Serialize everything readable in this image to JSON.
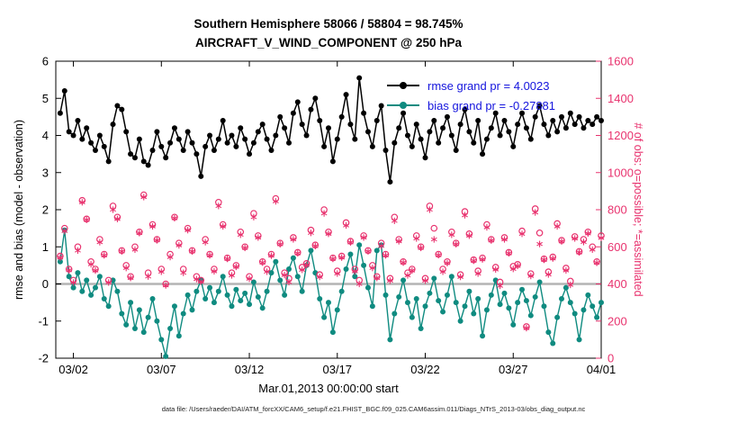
{
  "title": {
    "line1": "Southern Hemisphere 58066 / 58804 = 98.745%",
    "line2": "AIRCRAFT_V_WIND_COMPONENT @ 250 hPa"
  },
  "footer": {
    "data_file": "data file: /Users/raeder/DAI/ATM_forcXX/CAM6_setup/f.e21.FHIST_BGC.f09_025.CAM6assim.011/Diags_NTrS_2013-03/obs_diag_output.nc"
  },
  "chart_data": {
    "type": "line",
    "title": "Southern Hemisphere 58066 / 58804 = 98.745%",
    "subtitle": "AIRCRAFT_V_WIND_COMPONENT @ 250 hPa",
    "xlabel": "Mar.01,2013 00:00:00 start",
    "ylabel_left": "rmse and bias (model - observation)",
    "ylabel_right": "# of obs: o=possible; *=assimilated",
    "xlim_days": [
      0,
      31
    ],
    "ylim_left": [
      -2,
      6
    ],
    "ylim_right": [
      0,
      1600
    ],
    "xtick_days": [
      1,
      6,
      11,
      16,
      21,
      26,
      31
    ],
    "xtick_labels": [
      "03/02",
      "03/07",
      "03/12",
      "03/17",
      "03/22",
      "03/27",
      "04/01"
    ],
    "ytick_left": [
      -2,
      -1,
      0,
      1,
      2,
      3,
      4,
      5,
      6
    ],
    "ytick_right": [
      0,
      200,
      400,
      600,
      800,
      1000,
      1200,
      1400,
      1600
    ],
    "n_points": 124,
    "x_start_day": 0.25,
    "x_step_day": 0.25,
    "zero_line_color": "#b4b4b4",
    "colors": {
      "legend_text": "#1414dd",
      "obs": "#e8326e"
    },
    "series": [
      {
        "name": "rmse grand pr = 4.0023",
        "color": "#000000",
        "axis": "left",
        "marker": "dot",
        "line_width": 1.5,
        "values": [
          4.6,
          5.2,
          4.1,
          4.0,
          4.4,
          3.9,
          4.2,
          3.8,
          3.6,
          4.0,
          3.7,
          3.3,
          4.3,
          4.8,
          4.7,
          4.1,
          3.5,
          3.4,
          3.9,
          3.3,
          3.2,
          3.6,
          4.1,
          3.7,
          3.4,
          3.8,
          4.2,
          3.9,
          3.6,
          4.1,
          3.8,
          3.5,
          2.9,
          3.7,
          4.0,
          3.6,
          3.9,
          4.4,
          3.8,
          4.0,
          3.7,
          4.2,
          3.9,
          3.5,
          3.8,
          4.1,
          4.3,
          3.9,
          3.6,
          4.0,
          4.5,
          4.2,
          3.8,
          4.6,
          4.9,
          4.3,
          4.0,
          4.7,
          5.0,
          4.4,
          3.7,
          4.2,
          3.3,
          3.9,
          4.5,
          5.1,
          4.3,
          3.9,
          5.55,
          4.6,
          4.1,
          3.7,
          4.4,
          4.8,
          3.6,
          2.75,
          3.8,
          4.2,
          4.6,
          4.0,
          3.7,
          4.3,
          3.9,
          3.4,
          4.1,
          4.4,
          3.8,
          4.2,
          4.5,
          4.0,
          3.6,
          4.3,
          4.7,
          4.1,
          3.8,
          4.4,
          3.5,
          3.9,
          4.2,
          4.6,
          4.0,
          4.4,
          4.1,
          3.7,
          4.3,
          4.6,
          4.2,
          3.9,
          4.5,
          4.8,
          4.3,
          4.0,
          4.4,
          4.1,
          4.5,
          4.2,
          4.6,
          4.3,
          4.5,
          4.2,
          4.4,
          4.3,
          4.5,
          4.4
        ]
      },
      {
        "name": "bias grand pr = -0.27881",
        "color": "#0f8b80",
        "axis": "left",
        "marker": "dot",
        "line_width": 1.4,
        "values": [
          0.6,
          1.45,
          0.2,
          -0.1,
          0.3,
          -0.2,
          0.1,
          -0.3,
          -0.1,
          0.2,
          -0.4,
          -0.6,
          0.1,
          -0.2,
          -0.8,
          -1.1,
          -0.5,
          -1.2,
          -0.7,
          -1.3,
          -0.9,
          -0.4,
          -1.0,
          -1.5,
          -1.95,
          -1.2,
          -0.6,
          -1.4,
          -0.8,
          -0.3,
          -0.7,
          -0.2,
          0.1,
          -0.4,
          -0.1,
          -0.5,
          -0.2,
          0.2,
          -0.3,
          -0.6,
          -0.15,
          -0.45,
          -0.25,
          -0.55,
          0.05,
          -0.35,
          -0.65,
          -0.2,
          0.3,
          0.6,
          0.1,
          -0.3,
          0.4,
          0.7,
          0.2,
          -0.2,
          0.5,
          0.9,
          0.3,
          -0.4,
          -0.9,
          -0.5,
          -1.3,
          -0.7,
          -0.2,
          0.4,
          0.8,
          0.2,
          1.05,
          0.5,
          -0.1,
          -0.6,
          0.9,
          1.05,
          -0.3,
          -1.5,
          -0.8,
          -0.35,
          0.1,
          -0.5,
          -0.9,
          -0.4,
          -1.2,
          -0.6,
          -0.25,
          0.15,
          -0.45,
          -0.75,
          -0.3,
          0.2,
          -0.5,
          -1.0,
          -0.6,
          -0.2,
          -0.8,
          -0.4,
          -1.4,
          -0.7,
          -0.3,
          0.1,
          -0.55,
          -0.25,
          -0.65,
          -1.1,
          -0.5,
          -0.15,
          -0.45,
          -0.85,
          -0.35,
          0.05,
          -0.6,
          -1.3,
          -1.6,
          -0.9,
          -0.4,
          -0.1,
          -0.5,
          -0.8,
          -1.5,
          -0.7,
          -0.3,
          -0.6,
          -0.9,
          -0.5
        ]
      },
      {
        "name": "possible",
        "color": "#e8326e",
        "axis": "right",
        "marker": "circle",
        "values": [
          550,
          700,
          480,
          420,
          600,
          850,
          750,
          520,
          480,
          640,
          560,
          420,
          820,
          760,
          580,
          500,
          440,
          600,
          680,
          880,
          460,
          720,
          640,
          480,
          400,
          560,
          760,
          620,
          480,
          700,
          580,
          440,
          420,
          640,
          560,
          480,
          840,
          720,
          540,
          460,
          500,
          680,
          600,
          440,
          780,
          660,
          520,
          480,
          560,
          860,
          620,
          460,
          430,
          650,
          570,
          490,
          510,
          690,
          610,
          450,
          800,
          680,
          540,
          470,
          550,
          730,
          630,
          480,
          420,
          660,
          580,
          500,
          440,
          620,
          560,
          430,
          760,
          640,
          520,
          460,
          480,
          660,
          600,
          430,
          820,
          700,
          560,
          480,
          520,
          680,
          620,
          450,
          790,
          670,
          530,
          470,
          540,
          720,
          640,
          490,
          410,
          650,
          570,
          495,
          505,
          685,
          170,
          455,
          805,
          675,
          535,
          465,
          545,
          725,
          635,
          485,
          415,
          655,
          575,
          640,
          680,
          600,
          520,
          660
        ]
      },
      {
        "name": "assimilated",
        "color": "#e8326e",
        "axis": "right",
        "marker": "asterisk",
        "values": [
          542,
          685,
          474,
          408,
          580,
          840,
          745,
          506,
          472,
          625,
          554,
          408,
          800,
          750,
          575,
          486,
          432,
          585,
          674,
          868,
          440,
          710,
          635,
          466,
          392,
          545,
          754,
          608,
          460,
          690,
          575,
          426,
          412,
          625,
          554,
          468,
          820,
          710,
          535,
          446,
          492,
          665,
          594,
          428,
          760,
          650,
          515,
          466,
          552,
          845,
          614,
          448,
          410,
          640,
          565,
          476,
          502,
          675,
          604,
          438,
          780,
          670,
          535,
          456,
          542,
          715,
          624,
          468,
          400,
          650,
          575,
          486,
          432,
          605,
          554,
          418,
          740,
          630,
          515,
          446,
          472,
          645,
          594,
          418,
          800,
          640,
          555,
          466,
          512,
          665,
          614,
          438,
          770,
          660,
          525,
          456,
          532,
          705,
          634,
          478,
          390,
          640,
          565,
          481,
          497,
          670,
          162,
          443,
          785,
          615,
          530,
          451,
          537,
          710,
          629,
          473,
          395,
          645,
          570,
          626,
          672,
          585,
          514,
          648
        ]
      }
    ]
  }
}
